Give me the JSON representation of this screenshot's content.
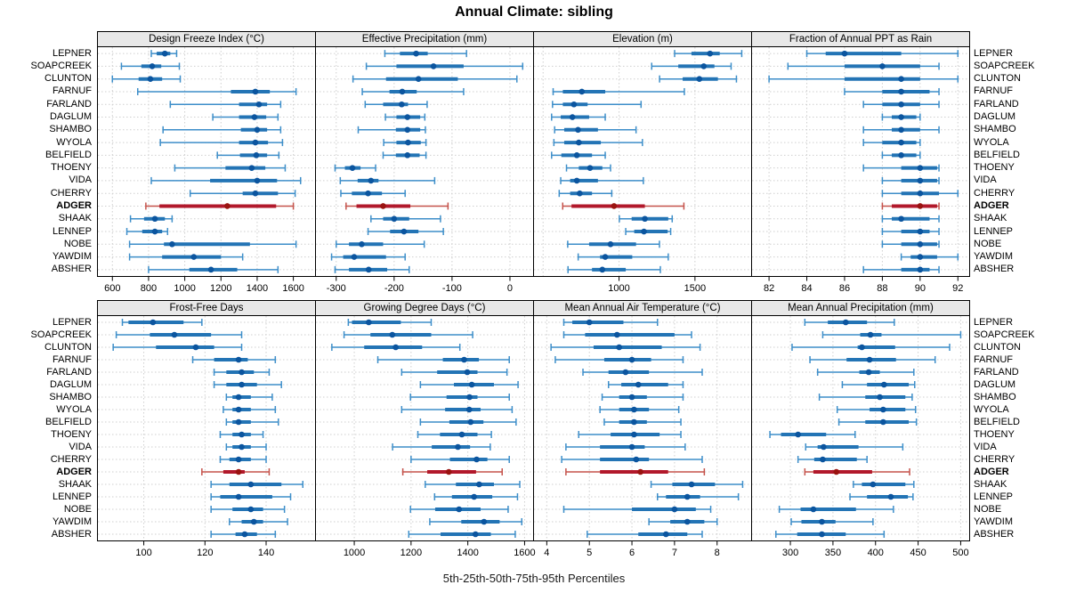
{
  "title": "Annual Climate: sibling",
  "footer": "5th-25th-50th-75th-95th Percentiles",
  "highlight_station": "ADGER",
  "stations": [
    "LEPNER",
    "SOAPCREEK",
    "CLUNTON",
    "FARNUF",
    "FARLAND",
    "DAGLUM",
    "SHAMBO",
    "WYOLA",
    "BELFIELD",
    "THOENY",
    "VIDA",
    "CHERRY",
    "ADGER",
    "SHAAK",
    "LENNEP",
    "NOBE",
    "YAWDIM",
    "ABSHER"
  ],
  "colors": {
    "normal": {
      "whisker": "#3D8EC9",
      "bar": "#2374B5",
      "dot": "#0B559F"
    },
    "highlight": {
      "whisker": "#C5524A",
      "bar": "#B2182B",
      "dot": "#9A1310"
    },
    "strip_bg": "#E8E8E8",
    "grid": "#CFCFCF",
    "frame": "#000000"
  },
  "chart_data": [
    {
      "type": "percentile-dot-whisker",
      "id": "design-freeze-index",
      "row": 0,
      "title": "Design Freeze Index (°C)",
      "xlim": [
        520,
        1720
      ],
      "ticks": [
        600,
        800,
        1000,
        1200,
        1400,
        1600
      ],
      "percentiles": [
        5,
        25,
        50,
        75,
        95
      ],
      "values": [
        [
          815,
          845,
          890,
          920,
          955
        ],
        [
          650,
          760,
          820,
          870,
          970
        ],
        [
          600,
          745,
          810,
          875,
          975
        ],
        [
          740,
          1255,
          1390,
          1470,
          1615
        ],
        [
          920,
          1300,
          1410,
          1455,
          1530
        ],
        [
          1155,
          1300,
          1385,
          1450,
          1515
        ],
        [
          880,
          1310,
          1400,
          1455,
          1530
        ],
        [
          865,
          1300,
          1390,
          1460,
          1540
        ],
        [
          1180,
          1305,
          1395,
          1455,
          1520
        ],
        [
          945,
          1225,
          1370,
          1445,
          1555
        ],
        [
          815,
          1140,
          1400,
          1510,
          1640
        ],
        [
          1030,
          1320,
          1390,
          1515,
          1610
        ],
        [
          785,
          860,
          1235,
          1505,
          1600
        ],
        [
          700,
          775,
          835,
          890,
          930
        ],
        [
          680,
          765,
          835,
          875,
          905
        ],
        [
          695,
          885,
          930,
          1360,
          1615
        ],
        [
          695,
          875,
          1050,
          1200,
          1320
        ],
        [
          800,
          1025,
          1145,
          1290,
          1515
        ]
      ]
    },
    {
      "type": "percentile-dot-whisker",
      "id": "effective-precipitation",
      "row": 0,
      "title": "Effective Precipitation (mm)",
      "xlim": [
        -335,
        40
      ],
      "ticks": [
        -300,
        -200,
        -100,
        0
      ],
      "percentiles": [
        5,
        25,
        50,
        75,
        95
      ],
      "values": [
        [
          -216,
          -190,
          -162,
          -142,
          -75
        ],
        [
          -248,
          -196,
          -132,
          -80,
          22
        ],
        [
          -271,
          -214,
          -158,
          -90,
          12
        ],
        [
          -255,
          -208,
          -186,
          -161,
          -80
        ],
        [
          -250,
          -219,
          -187,
          -176,
          -143
        ],
        [
          -215,
          -196,
          -177,
          -155,
          -147
        ],
        [
          -262,
          -197,
          -177,
          -155,
          -146
        ],
        [
          -218,
          -196,
          -176,
          -154,
          -145
        ],
        [
          -219,
          -197,
          -177,
          -156,
          -145
        ],
        [
          -302,
          -285,
          -272,
          -258,
          -232
        ],
        [
          -293,
          -263,
          -240,
          -227,
          -130
        ],
        [
          -292,
          -273,
          -245,
          -221,
          -181
        ],
        [
          -283,
          -265,
          -219,
          -172,
          -107
        ],
        [
          -240,
          -219,
          -200,
          -174,
          -120
        ],
        [
          -245,
          -207,
          -183,
          -158,
          -115
        ],
        [
          -300,
          -278,
          -256,
          -219,
          -148
        ],
        [
          -308,
          -288,
          -269,
          -214,
          -181
        ],
        [
          -302,
          -278,
          -244,
          -212,
          -174
        ]
      ]
    },
    {
      "type": "percentile-dot-whisker",
      "id": "elevation",
      "row": 0,
      "title": "Elevation (m)",
      "xlim": [
        440,
        1870
      ],
      "ticks": [
        1000,
        1500
      ],
      "grid": [
        500,
        1000,
        1500
      ],
      "percentiles": [
        5,
        25,
        50,
        75,
        95
      ],
      "values": [
        [
          1366,
          1477,
          1599,
          1663,
          1808
        ],
        [
          1215,
          1390,
          1558,
          1628,
          1738
        ],
        [
          1267,
          1419,
          1529,
          1651,
          1773
        ],
        [
          566,
          630,
          755,
          909,
          1430
        ],
        [
          562,
          630,
          703,
          793,
          1145
        ],
        [
          556,
          616,
          693,
          803,
          909
        ],
        [
          576,
          639,
          730,
          861,
          1112
        ],
        [
          571,
          639,
          735,
          880,
          1154
        ],
        [
          556,
          620,
          722,
          822,
          909
        ],
        [
          654,
          735,
          809,
          890,
          944
        ],
        [
          616,
          678,
          722,
          861,
          1160
        ],
        [
          606,
          678,
          741,
          822,
          952
        ],
        [
          629,
          687,
          967,
          1170,
          1427
        ],
        [
          1002,
          1083,
          1170,
          1324,
          1350
        ],
        [
          1044,
          1100,
          1164,
          1320,
          1340
        ],
        [
          662,
          803,
          944,
          1112,
          1266
        ],
        [
          731,
          875,
          909,
          1087,
          1324
        ],
        [
          664,
          822,
          890,
          1044,
          1272
        ]
      ]
    },
    {
      "type": "percentile-dot-whisker",
      "id": "fraction-annual-ppt-as-rain",
      "row": 0,
      "title": "Fraction of Annual PPT as Rain",
      "xlim": [
        81.1,
        92.6
      ],
      "ticks": [
        82,
        84,
        86,
        88,
        90,
        92
      ],
      "percentiles": [
        5,
        25,
        50,
        75,
        95
      ],
      "values": [
        [
          84,
          85,
          86,
          89,
          92
        ],
        [
          83,
          86,
          88,
          90,
          91
        ],
        [
          82,
          86,
          89,
          90,
          92
        ],
        [
          86,
          88,
          89,
          90.5,
          91
        ],
        [
          87,
          88,
          89,
          90,
          91
        ],
        [
          88,
          88.5,
          89,
          89.8,
          90
        ],
        [
          87,
          88.5,
          89,
          90,
          91
        ],
        [
          87,
          88,
          89,
          89.8,
          90
        ],
        [
          88,
          88.5,
          89,
          89.8,
          90
        ],
        [
          87,
          89,
          90,
          90.9,
          91
        ],
        [
          88,
          89,
          90,
          90.9,
          91
        ],
        [
          88,
          89,
          90,
          91,
          92
        ],
        [
          88,
          88.5,
          90,
          90.9,
          91
        ],
        [
          88,
          88.5,
          89,
          90.5,
          91
        ],
        [
          88,
          89,
          90,
          90.5,
          91
        ],
        [
          88,
          89,
          90,
          90.9,
          91
        ],
        [
          89,
          89.5,
          90,
          90.9,
          92
        ],
        [
          87,
          89,
          90,
          90.5,
          91
        ]
      ]
    },
    {
      "type": "percentile-dot-whisker",
      "id": "frost-free-days",
      "row": 1,
      "title": "Frost-Free Days",
      "xlim": [
        85,
        156
      ],
      "ticks": [
        100,
        120,
        140
      ],
      "percentiles": [
        5,
        25,
        50,
        75,
        95
      ],
      "values": [
        [
          93,
          95,
          103,
          113,
          119
        ],
        [
          91,
          102,
          110,
          122,
          132
        ],
        [
          90,
          104,
          117,
          123,
          132
        ],
        [
          116,
          123,
          131,
          134,
          143
        ],
        [
          123,
          127,
          132,
          136,
          141
        ],
        [
          123,
          127,
          132,
          137,
          145
        ],
        [
          127,
          129,
          131,
          135,
          142
        ],
        [
          126,
          129,
          131,
          135,
          143
        ],
        [
          127,
          129,
          131,
          135,
          144
        ],
        [
          125,
          129,
          132,
          135,
          139
        ],
        [
          127,
          129,
          132,
          135,
          140
        ],
        [
          125,
          128,
          131,
          135,
          140
        ],
        [
          119,
          126,
          131,
          133,
          141
        ],
        [
          122,
          128,
          135,
          145,
          152
        ],
        [
          122,
          125,
          131,
          142,
          148
        ],
        [
          122,
          129,
          135,
          139,
          146
        ],
        [
          128,
          132,
          136,
          139,
          147
        ],
        [
          122,
          130,
          133,
          137,
          143
        ]
      ]
    },
    {
      "type": "percentile-dot-whisker",
      "id": "growing-degree-days",
      "row": 1,
      "title": "Growing Degree Days (°C)",
      "xlim": [
        865,
        1630
      ],
      "ticks": [
        1000,
        1200,
        1400,
        1600
      ],
      "percentiles": [
        5,
        25,
        50,
        75,
        95
      ],
      "values": [
        [
          979,
          992,
          1051,
          1164,
          1271
        ],
        [
          964,
          1057,
          1134,
          1271,
          1417
        ],
        [
          921,
          1035,
          1146,
          1239,
          1372
        ],
        [
          1083,
          1312,
          1387,
          1439,
          1546
        ],
        [
          1167,
          1292,
          1398,
          1434,
          1538
        ],
        [
          1233,
          1351,
          1414,
          1492,
          1577
        ],
        [
          1198,
          1325,
          1406,
          1434,
          1546
        ],
        [
          1167,
          1320,
          1405,
          1445,
          1556
        ],
        [
          1233,
          1335,
          1410,
          1455,
          1570
        ],
        [
          1224,
          1302,
          1379,
          1434,
          1483
        ],
        [
          1135,
          1273,
          1365,
          1408,
          1479
        ],
        [
          1200,
          1337,
          1431,
          1469,
          1546
        ],
        [
          1171,
          1257,
          1333,
          1429,
          1521
        ],
        [
          1250,
          1358,
          1440,
          1492,
          1583
        ],
        [
          1283,
          1344,
          1422,
          1486,
          1575
        ],
        [
          1198,
          1285,
          1369,
          1445,
          1542
        ],
        [
          1266,
          1377,
          1457,
          1512,
          1590
        ],
        [
          1192,
          1304,
          1427,
          1481,
          1567
        ]
      ]
    },
    {
      "type": "percentile-dot-whisker",
      "id": "mean-annual-air-temperature",
      "row": 1,
      "title": "Mean Annual Air Temperature (°C)",
      "xlim": [
        3.7,
        8.8
      ],
      "ticks": [
        4,
        5,
        6,
        7,
        8
      ],
      "percentiles": [
        5,
        25,
        50,
        75,
        95
      ],
      "values": [
        [
          4.4,
          4.6,
          5.0,
          5.8,
          6.6
        ],
        [
          4.4,
          4.9,
          5.65,
          7.0,
          7.4
        ],
        [
          4.1,
          5.1,
          5.7,
          6.7,
          7.6
        ],
        [
          4.2,
          5.35,
          6.0,
          6.45,
          7.2
        ],
        [
          4.85,
          5.45,
          5.85,
          6.4,
          7.65
        ],
        [
          5.45,
          5.75,
          6.15,
          6.85,
          7.2
        ],
        [
          5.3,
          5.7,
          6.0,
          6.35,
          7.2
        ],
        [
          5.25,
          5.7,
          6.05,
          6.4,
          7.1
        ],
        [
          5.35,
          5.7,
          6.05,
          6.35,
          7.15
        ],
        [
          4.75,
          5.5,
          6.05,
          6.65,
          7.15
        ],
        [
          4.45,
          5.25,
          6.0,
          6.3,
          7.25
        ],
        [
          4.35,
          5.25,
          6.1,
          6.4,
          7.65
        ],
        [
          4.45,
          5.25,
          6.2,
          6.85,
          7.7
        ],
        [
          6.45,
          6.95,
          7.4,
          7.95,
          8.6
        ],
        [
          6.6,
          6.8,
          7.3,
          7.6,
          8.5
        ],
        [
          4.4,
          6.0,
          7.0,
          7.5,
          7.85
        ],
        [
          6.4,
          6.9,
          7.3,
          7.7,
          8.0
        ],
        [
          4.95,
          6.15,
          6.8,
          7.3,
          7.65
        ]
      ]
    },
    {
      "type": "percentile-dot-whisker",
      "id": "mean-annual-precipitation",
      "row": 1,
      "title": "Mean Annual Precipitation (mm)",
      "xlim": [
        255,
        510
      ],
      "ticks": [
        300,
        350,
        400,
        450,
        500
      ],
      "percentiles": [
        5,
        25,
        50,
        75,
        95
      ],
      "values": [
        [
          317,
          344,
          365,
          390,
          422
        ],
        [
          338,
          382,
          394,
          407,
          500
        ],
        [
          302,
          379,
          384,
          423,
          487
        ],
        [
          323,
          366,
          393,
          424,
          470
        ],
        [
          332,
          381,
          392,
          405,
          445
        ],
        [
          361,
          390,
          410,
          439,
          446
        ],
        [
          334,
          388,
          405,
          435,
          443
        ],
        [
          355,
          393,
          409,
          435,
          447
        ],
        [
          357,
          388,
          409,
          439,
          448
        ],
        [
          276,
          289,
          309,
          342,
          376
        ],
        [
          318,
          332,
          339,
          380,
          432
        ],
        [
          309,
          328,
          338,
          378,
          390
        ],
        [
          317,
          327,
          354,
          396,
          440
        ],
        [
          374,
          384,
          397,
          435,
          445
        ],
        [
          370,
          390,
          418,
          438,
          444
        ],
        [
          287,
          312,
          327,
          377,
          421
        ],
        [
          301,
          313,
          337,
          353,
          397
        ],
        [
          283,
          308,
          337,
          365,
          410
        ]
      ]
    }
  ]
}
